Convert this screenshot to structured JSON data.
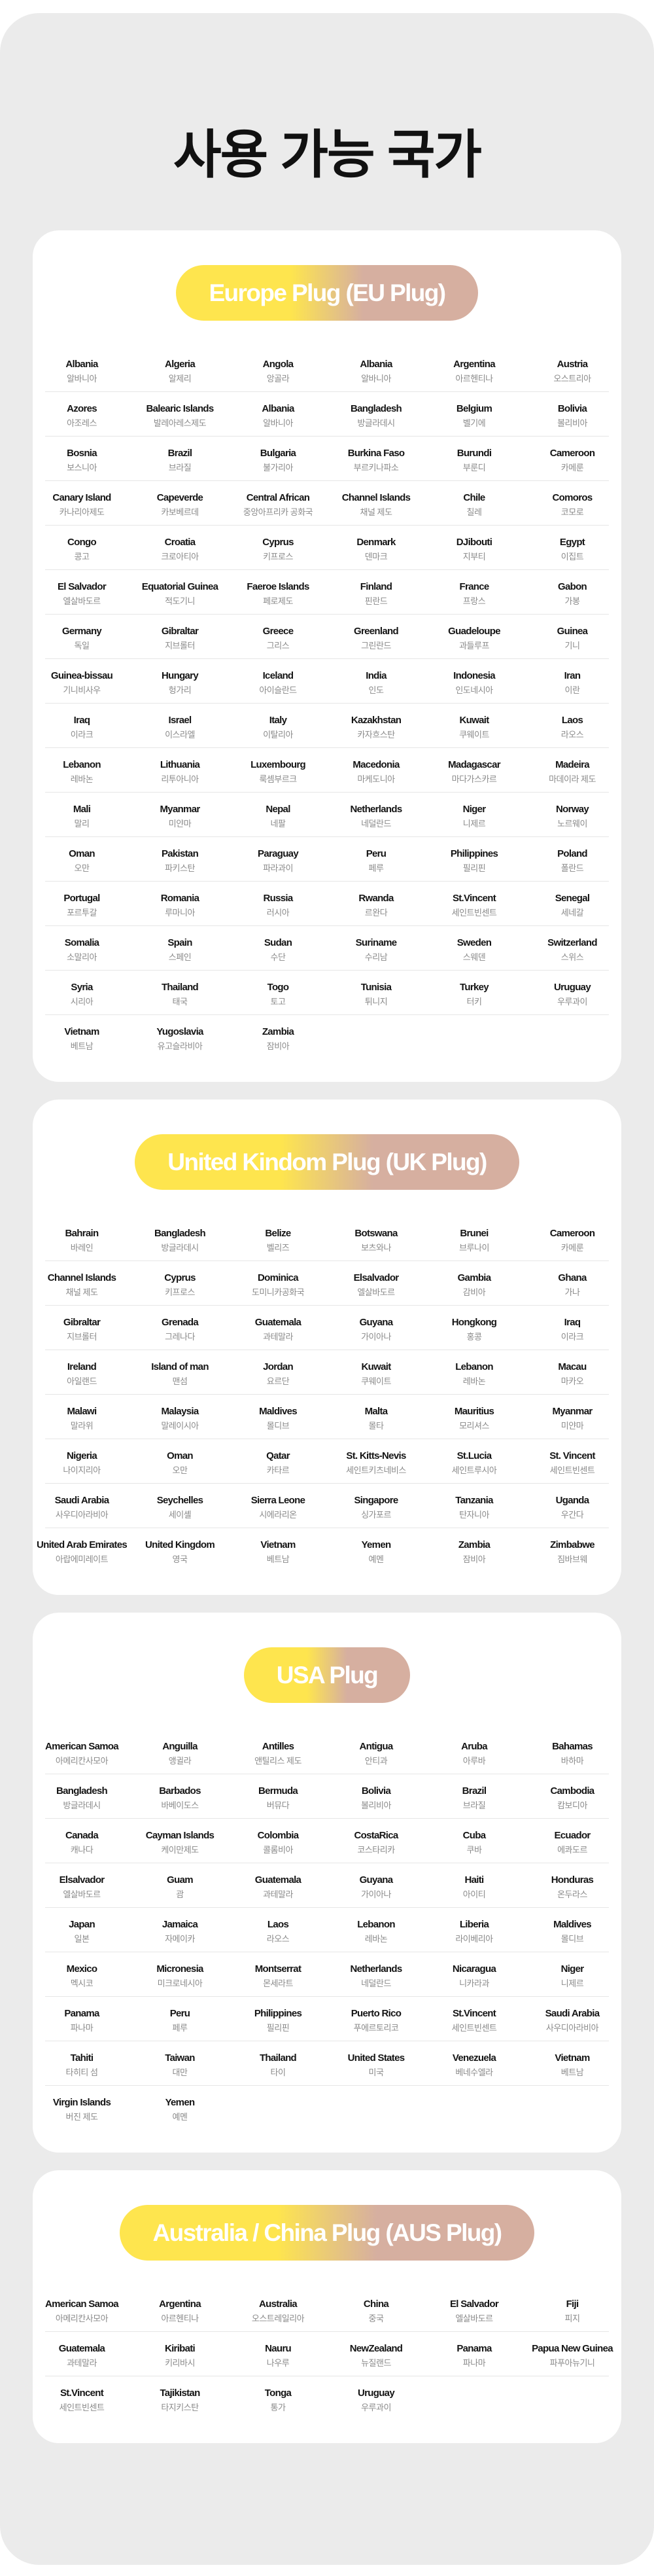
{
  "title": "사용 가능 국가",
  "sections": [
    {
      "title": "Europe Plug (EU Plug)",
      "countries": [
        {
          "en": "Albania",
          "ko": "알바니아"
        },
        {
          "en": "Algeria",
          "ko": "알제리"
        },
        {
          "en": "Angola",
          "ko": "앙골라"
        },
        {
          "en": "Albania",
          "ko": "알바니아"
        },
        {
          "en": "Argentina",
          "ko": "아르헨티나"
        },
        {
          "en": "Austria",
          "ko": "오스트리아"
        },
        {
          "en": "Azores",
          "ko": "아조레스"
        },
        {
          "en": "Balearic Islands",
          "ko": "발레아레스제도"
        },
        {
          "en": "Albania",
          "ko": "알바니아"
        },
        {
          "en": "Bangladesh",
          "ko": "방글라데시"
        },
        {
          "en": "Belgium",
          "ko": "벨기에"
        },
        {
          "en": "Bolivia",
          "ko": "볼리비아"
        },
        {
          "en": "Bosnia",
          "ko": "보스니아"
        },
        {
          "en": "Brazil",
          "ko": "브라질"
        },
        {
          "en": "Bulgaria",
          "ko": "불가리아"
        },
        {
          "en": "Burkina Faso",
          "ko": "부르키나파소"
        },
        {
          "en": "Burundi",
          "ko": "부룬디"
        },
        {
          "en": "Cameroon",
          "ko": "카메룬"
        },
        {
          "en": "Canary Island",
          "ko": "카나리아제도"
        },
        {
          "en": "Capeverde",
          "ko": "카보베르데"
        },
        {
          "en": "Central African",
          "ko": "중앙아프리카 공화국"
        },
        {
          "en": "Channel Islands",
          "ko": "채널 제도"
        },
        {
          "en": "Chile",
          "ko": "칠레"
        },
        {
          "en": "Comoros",
          "ko": "코모로"
        },
        {
          "en": "Congo",
          "ko": "콩고"
        },
        {
          "en": "Croatia",
          "ko": "크로아티아"
        },
        {
          "en": "Cyprus",
          "ko": "키프로스"
        },
        {
          "en": "Denmark",
          "ko": "덴마크"
        },
        {
          "en": "DJibouti",
          "ko": "지부티"
        },
        {
          "en": "Egypt",
          "ko": "이집트"
        },
        {
          "en": "El Salvador",
          "ko": "엘살바도르"
        },
        {
          "en": "Equatorial Guinea",
          "ko": "적도기니"
        },
        {
          "en": "Faeroe Islands",
          "ko": "페로제도"
        },
        {
          "en": "Finland",
          "ko": "핀란드"
        },
        {
          "en": "France",
          "ko": "프랑스"
        },
        {
          "en": "Gabon",
          "ko": "가봉"
        },
        {
          "en": "Germany",
          "ko": "독일"
        },
        {
          "en": "Gibraltar",
          "ko": "지브롤터"
        },
        {
          "en": "Greece",
          "ko": "그리스"
        },
        {
          "en": "Greenland",
          "ko": "그린란드"
        },
        {
          "en": "Guadeloupe",
          "ko": "과들루프"
        },
        {
          "en": "Guinea",
          "ko": "기니"
        },
        {
          "en": "Guinea-bissau",
          "ko": "기니비사우"
        },
        {
          "en": "Hungary",
          "ko": "헝가리"
        },
        {
          "en": "Iceland",
          "ko": "아이슬란드"
        },
        {
          "en": "India",
          "ko": "인도"
        },
        {
          "en": "Indonesia",
          "ko": "인도네시아"
        },
        {
          "en": "Iran",
          "ko": "이란"
        },
        {
          "en": "Iraq",
          "ko": "이라크"
        },
        {
          "en": "Israel",
          "ko": "이스라엘"
        },
        {
          "en": "Italy",
          "ko": "이탈리아"
        },
        {
          "en": "Kazakhstan",
          "ko": "카자흐스탄"
        },
        {
          "en": "Kuwait",
          "ko": "쿠웨이트"
        },
        {
          "en": "Laos",
          "ko": "라오스"
        },
        {
          "en": "Lebanon",
          "ko": "레바논"
        },
        {
          "en": "Lithuania",
          "ko": "리투아니아"
        },
        {
          "en": "Luxembourg",
          "ko": "룩셈부르크"
        },
        {
          "en": "Macedonia",
          "ko": "마케도니아"
        },
        {
          "en": "Madagascar",
          "ko": "마다가스카르"
        },
        {
          "en": "Madeira",
          "ko": "마데이라 제도"
        },
        {
          "en": "Mali",
          "ko": "말리"
        },
        {
          "en": "Myanmar",
          "ko": "미얀마"
        },
        {
          "en": "Nepal",
          "ko": "네팔"
        },
        {
          "en": "Netherlands",
          "ko": "네덜란드"
        },
        {
          "en": "Niger",
          "ko": "니제르"
        },
        {
          "en": "Norway",
          "ko": "노르웨이"
        },
        {
          "en": "Oman",
          "ko": "오만"
        },
        {
          "en": "Pakistan",
          "ko": "파키스탄"
        },
        {
          "en": "Paraguay",
          "ko": "파라과이"
        },
        {
          "en": "Peru",
          "ko": "페루"
        },
        {
          "en": "Philippines",
          "ko": "필리핀"
        },
        {
          "en": "Poland",
          "ko": "폴란드"
        },
        {
          "en": "Portugal",
          "ko": "포르투갈"
        },
        {
          "en": "Romania",
          "ko": "루마니아"
        },
        {
          "en": "Russia",
          "ko": "러시아"
        },
        {
          "en": "Rwanda",
          "ko": "르완다"
        },
        {
          "en": "St.Vincent",
          "ko": "세인트빈센트"
        },
        {
          "en": "Senegal",
          "ko": "세네갈"
        },
        {
          "en": "Somalia",
          "ko": "소말리아"
        },
        {
          "en": "Spain",
          "ko": "스페인"
        },
        {
          "en": "Sudan",
          "ko": "수단"
        },
        {
          "en": "Suriname",
          "ko": "수리남"
        },
        {
          "en": "Sweden",
          "ko": "스웨덴"
        },
        {
          "en": "Switzerland",
          "ko": "스위스"
        },
        {
          "en": "Syria",
          "ko": "시리아"
        },
        {
          "en": "Thailand",
          "ko": "태국"
        },
        {
          "en": "Togo",
          "ko": "토고"
        },
        {
          "en": "Tunisia",
          "ko": "튀니지"
        },
        {
          "en": "Turkey",
          "ko": "터키"
        },
        {
          "en": "Uruguay",
          "ko": "우루과이"
        },
        {
          "en": "Vietnam",
          "ko": "베트남"
        },
        {
          "en": "Yugoslavia",
          "ko": "유고슬라비아"
        },
        {
          "en": "Zambia",
          "ko": "잠비아"
        }
      ]
    },
    {
      "title": "United Kindom Plug (UK Plug)",
      "countries": [
        {
          "en": "Bahrain",
          "ko": "바레인"
        },
        {
          "en": "Bangladesh",
          "ko": "방글라데시"
        },
        {
          "en": "Belize",
          "ko": "벨리즈"
        },
        {
          "en": "Botswana",
          "ko": "보츠와나"
        },
        {
          "en": "Brunei",
          "ko": "브루나이"
        },
        {
          "en": "Cameroon",
          "ko": "카메룬"
        },
        {
          "en": "Channel Islands",
          "ko": "채널 제도"
        },
        {
          "en": "Cyprus",
          "ko": "키프로스"
        },
        {
          "en": "Dominica",
          "ko": "도미니카공화국"
        },
        {
          "en": "Elsalvador",
          "ko": "엘살바도르"
        },
        {
          "en": "Gambia",
          "ko": "감비아"
        },
        {
          "en": "Ghana",
          "ko": "가나"
        },
        {
          "en": "Gibraltar",
          "ko": "지브롤터"
        },
        {
          "en": "Grenada",
          "ko": "그레나다"
        },
        {
          "en": "Guatemala",
          "ko": "과테말라"
        },
        {
          "en": "Guyana",
          "ko": "가이아나"
        },
        {
          "en": "Hongkong",
          "ko": "홍콩"
        },
        {
          "en": "Iraq",
          "ko": "이라크"
        },
        {
          "en": "Ireland",
          "ko": "아일랜드"
        },
        {
          "en": "Island of man",
          "ko": "맨섬"
        },
        {
          "en": "Jordan",
          "ko": "요르단"
        },
        {
          "en": "Kuwait",
          "ko": "쿠웨이트"
        },
        {
          "en": "Lebanon",
          "ko": "레바논"
        },
        {
          "en": "Macau",
          "ko": "마카오"
        },
        {
          "en": "Malawi",
          "ko": "말라위"
        },
        {
          "en": "Malaysia",
          "ko": "말레이시아"
        },
        {
          "en": "Maldives",
          "ko": "몰디브"
        },
        {
          "en": "Malta",
          "ko": "몰타"
        },
        {
          "en": "Mauritius",
          "ko": "모리셔스"
        },
        {
          "en": "Myanmar",
          "ko": "미얀마"
        },
        {
          "en": "Nigeria",
          "ko": "나이지리아"
        },
        {
          "en": "Oman",
          "ko": "오만"
        },
        {
          "en": "Qatar",
          "ko": "카타르"
        },
        {
          "en": "St. Kitts-Nevis",
          "ko": "세인트키츠네비스"
        },
        {
          "en": "St.Lucia",
          "ko": "세인트루시아"
        },
        {
          "en": "St. Vincent",
          "ko": "세인트빈센트"
        },
        {
          "en": "Saudi Arabia",
          "ko": "사우디아라비아"
        },
        {
          "en": "Seychelles",
          "ko": "세이셸"
        },
        {
          "en": "Sierra Leone",
          "ko": "시에라리온"
        },
        {
          "en": "Singapore",
          "ko": "싱가포르"
        },
        {
          "en": "Tanzania",
          "ko": "탄자니아"
        },
        {
          "en": "Uganda",
          "ko": "우간다"
        },
        {
          "en": "United Arab Emirates",
          "ko": "아랍에미레이트"
        },
        {
          "en": "United Kingdom",
          "ko": "영국"
        },
        {
          "en": "Vietnam",
          "ko": "베트남"
        },
        {
          "en": "Yemen",
          "ko": "예멘"
        },
        {
          "en": "Zambia",
          "ko": "잠비아"
        },
        {
          "en": "Zimbabwe",
          "ko": "짐바브웨"
        }
      ]
    },
    {
      "title": "USA Plug",
      "countries": [
        {
          "en": "American Samoa",
          "ko": "아메리칸사모아"
        },
        {
          "en": "Anguilla",
          "ko": "앵귈라"
        },
        {
          "en": "Antilles",
          "ko": "앤틸리스 제도"
        },
        {
          "en": "Antigua",
          "ko": "안티과"
        },
        {
          "en": "Aruba",
          "ko": "아루바"
        },
        {
          "en": "Bahamas",
          "ko": "바하마"
        },
        {
          "en": "Bangladesh",
          "ko": "방글라데시"
        },
        {
          "en": "Barbados",
          "ko": "바베이도스"
        },
        {
          "en": "Bermuda",
          "ko": "버뮤다"
        },
        {
          "en": "Bolivia",
          "ko": "볼리비아"
        },
        {
          "en": "Brazil",
          "ko": "브라질"
        },
        {
          "en": "Cambodia",
          "ko": "캄보디아"
        },
        {
          "en": "Canada",
          "ko": "캐나다"
        },
        {
          "en": "Cayman Islands",
          "ko": "케이만제도"
        },
        {
          "en": "Colombia",
          "ko": "콜롬비아"
        },
        {
          "en": "CostaRica",
          "ko": "코스타리카"
        },
        {
          "en": "Cuba",
          "ko": "쿠바"
        },
        {
          "en": "Ecuador",
          "ko": "에콰도르"
        },
        {
          "en": "Elsalvador",
          "ko": "엘살바도르"
        },
        {
          "en": "Guam",
          "ko": "괌"
        },
        {
          "en": "Guatemala",
          "ko": "과테말라"
        },
        {
          "en": "Guyana",
          "ko": "가이아나"
        },
        {
          "en": "Haiti",
          "ko": "아이티"
        },
        {
          "en": "Honduras",
          "ko": "온두라스"
        },
        {
          "en": "Japan",
          "ko": "일본"
        },
        {
          "en": "Jamaica",
          "ko": "자메이카"
        },
        {
          "en": "Laos",
          "ko": "라오스"
        },
        {
          "en": "Lebanon",
          "ko": "레바논"
        },
        {
          "en": "Liberia",
          "ko": "라이베리아"
        },
        {
          "en": "Maldives",
          "ko": "몰디브"
        },
        {
          "en": "Mexico",
          "ko": "멕시코"
        },
        {
          "en": "Micronesia",
          "ko": "미크로네시아"
        },
        {
          "en": "Montserrat",
          "ko": "몬세라트"
        },
        {
          "en": "Netherlands",
          "ko": "네덜란드"
        },
        {
          "en": "Nicaragua",
          "ko": "니카라과"
        },
        {
          "en": "Niger",
          "ko": "니제르"
        },
        {
          "en": "Panama",
          "ko": "파나마"
        },
        {
          "en": "Peru",
          "ko": "페루"
        },
        {
          "en": "Philippines",
          "ko": "필리핀"
        },
        {
          "en": "Puerto Rico",
          "ko": "푸에르토리코"
        },
        {
          "en": "St.Vincent",
          "ko": "세인트빈센트"
        },
        {
          "en": "Saudi Arabia",
          "ko": "사우디아라비아"
        },
        {
          "en": "Tahiti",
          "ko": "타히티 섬"
        },
        {
          "en": "Taiwan",
          "ko": "대만"
        },
        {
          "en": "Thailand",
          "ko": "타이"
        },
        {
          "en": "United States",
          "ko": "미국"
        },
        {
          "en": "Venezuela",
          "ko": "베네수엘라"
        },
        {
          "en": "Vietnam",
          "ko": "베트남"
        },
        {
          "en": "Virgin Islands",
          "ko": "버진 제도"
        },
        {
          "en": "Yemen",
          "ko": "예멘"
        }
      ]
    },
    {
      "title": "Australia / China Plug (AUS Plug)",
      "countries": [
        {
          "en": "American Samoa",
          "ko": "아메리칸사모아"
        },
        {
          "en": "Argentina",
          "ko": "아르헨티나"
        },
        {
          "en": "Australia",
          "ko": "오스트레일리아"
        },
        {
          "en": "China",
          "ko": "중국"
        },
        {
          "en": "El Salvador",
          "ko": "엘살바도르"
        },
        {
          "en": "Fiji",
          "ko": "피지"
        },
        {
          "en": "Guatemala",
          "ko": "과테말라"
        },
        {
          "en": "Kiribati",
          "ko": "키리바시"
        },
        {
          "en": "Nauru",
          "ko": "나우루"
        },
        {
          "en": "NewZealand",
          "ko": "뉴질랜드"
        },
        {
          "en": "Panama",
          "ko": "파나마"
        },
        {
          "en": "Papua New Guinea",
          "ko": "파푸아뉴기니"
        },
        {
          "en": "St.Vincent",
          "ko": "세인트빈센트"
        },
        {
          "en": "Tajikistan",
          "ko": "타지키스탄"
        },
        {
          "en": "Tonga",
          "ko": "통가"
        },
        {
          "en": "Uruguay",
          "ko": "우루과이"
        }
      ]
    }
  ],
  "colors": {
    "panel": "#ebebeb",
    "pill_start": "#fee54e",
    "pill_end": "#d6afa0",
    "label_ko": "#8a8a8a"
  }
}
